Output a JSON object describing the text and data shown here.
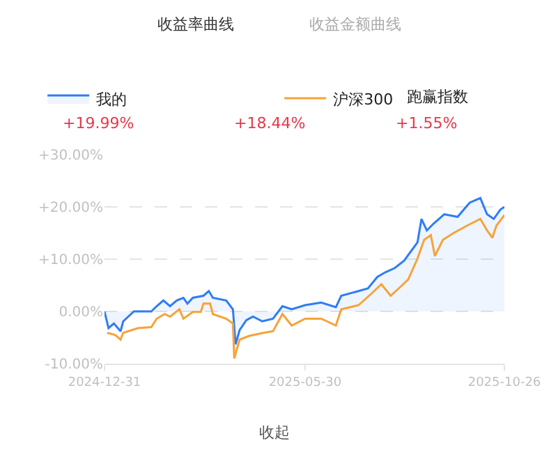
{
  "chart_data": {
    "type": "line",
    "ylim": [
      -10,
      30
    ],
    "yticks": [
      {
        "value": 30,
        "label": "+30.00%"
      },
      {
        "value": 20,
        "label": "+20.00%"
      },
      {
        "value": 10,
        "label": "+10.00%"
      },
      {
        "value": 0,
        "label": "0.00%"
      },
      {
        "value": -10,
        "label": "-10.00%"
      }
    ],
    "xlim": [
      "2024-12-31",
      "2025-10-26"
    ],
    "xticks": [
      "2024-12-31",
      "2025-05-30",
      "2025-10-26"
    ],
    "grid": "y",
    "legend": "top",
    "annotations": [
      "收益率曲线",
      "收益金额曲线",
      "+19.99%",
      "+18.44%",
      "跑赢指数",
      "+1.55%",
      "收起"
    ],
    "series": [
      {
        "name": "我的",
        "type": "area",
        "color": "#2f7cf6",
        "x": [
          "2024-12-31",
          "2025-01-03",
          "2025-01-07",
          "2025-01-12",
          "2025-01-14",
          "2025-01-22",
          "2025-02-04",
          "2025-02-08",
          "2025-02-13",
          "2025-02-18",
          "2025-02-23",
          "2025-02-28",
          "2025-03-03",
          "2025-03-07",
          "2025-03-15",
          "2025-03-19",
          "2025-03-22",
          "2025-04-01",
          "2025-04-06",
          "2025-04-08",
          "2025-04-11",
          "2025-04-16",
          "2025-04-21",
          "2025-04-28",
          "2025-05-06",
          "2025-05-13",
          "2025-05-20",
          "2025-05-30",
          "2025-06-11",
          "2025-06-22",
          "2025-06-26",
          "2025-07-09",
          "2025-07-16",
          "2025-07-23",
          "2025-07-29",
          "2025-08-05",
          "2025-08-12",
          "2025-08-22",
          "2025-08-25",
          "2025-08-29",
          "2025-09-03",
          "2025-09-11",
          "2025-09-21",
          "2025-09-30",
          "2025-10-08",
          "2025-10-13",
          "2025-10-18",
          "2025-10-23",
          "2025-10-26"
        ],
        "values": [
          0,
          -3.2,
          -2.3,
          -3.8,
          -1.9,
          0,
          0,
          1,
          2.1,
          1,
          2.1,
          2.6,
          1.5,
          2.6,
          3,
          3.9,
          2.6,
          2.1,
          0.4,
          -6.3,
          -3.6,
          -1.7,
          -1,
          -1.9,
          -1.4,
          1,
          0.4,
          1.2,
          1.7,
          0.8,
          3,
          3.9,
          4.4,
          6.6,
          7.5,
          8.3,
          9.7,
          13.2,
          17.7,
          15.5,
          16.8,
          18.6,
          18.1,
          20.8,
          21.7,
          18.6,
          17.7,
          19.5,
          20
        ]
      },
      {
        "name": "沪深300",
        "color": "#f5a33a",
        "x": [
          "2025-01-02",
          "2025-01-08",
          "2025-01-12",
          "2025-01-14",
          "2025-01-25",
          "2025-02-04",
          "2025-02-08",
          "2025-02-14",
          "2025-02-18",
          "2025-02-25",
          "2025-02-28",
          "2025-03-07",
          "2025-03-13",
          "2025-03-15",
          "2025-03-20",
          "2025-03-22",
          "2025-04-01",
          "2025-04-06",
          "2025-04-07",
          "2025-04-11",
          "2025-04-18",
          "2025-04-29",
          "2025-05-06",
          "2025-05-13",
          "2025-05-20",
          "2025-05-30",
          "2025-06-11",
          "2025-06-22",
          "2025-06-26",
          "2025-07-09",
          "2025-07-19",
          "2025-07-26",
          "2025-08-02",
          "2025-08-08",
          "2025-08-15",
          "2025-08-22",
          "2025-08-27",
          "2025-09-01",
          "2025-09-04",
          "2025-09-10",
          "2025-09-18",
          "2025-09-28",
          "2025-10-08",
          "2025-10-13",
          "2025-10-17",
          "2025-10-20",
          "2025-10-25",
          "2025-10-26"
        ],
        "values": [
          -4.1,
          -4.5,
          -5.4,
          -4.1,
          -3.2,
          -3,
          -1.4,
          -0.5,
          -1,
          0.4,
          -1.4,
          -0.1,
          -0.1,
          1.5,
          1.5,
          -0.5,
          -1.4,
          -2.3,
          -9,
          -5.4,
          -4.7,
          -4.1,
          -3.8,
          -0.5,
          -2.7,
          -1.4,
          -1.4,
          -2.7,
          0.4,
          1.2,
          3.5,
          5.2,
          3,
          4.4,
          6.1,
          10.1,
          13.7,
          14.6,
          10.6,
          13.7,
          15,
          16.4,
          17.7,
          15.5,
          14.1,
          16.4,
          18.1,
          18.4
        ]
      }
    ]
  }
}
